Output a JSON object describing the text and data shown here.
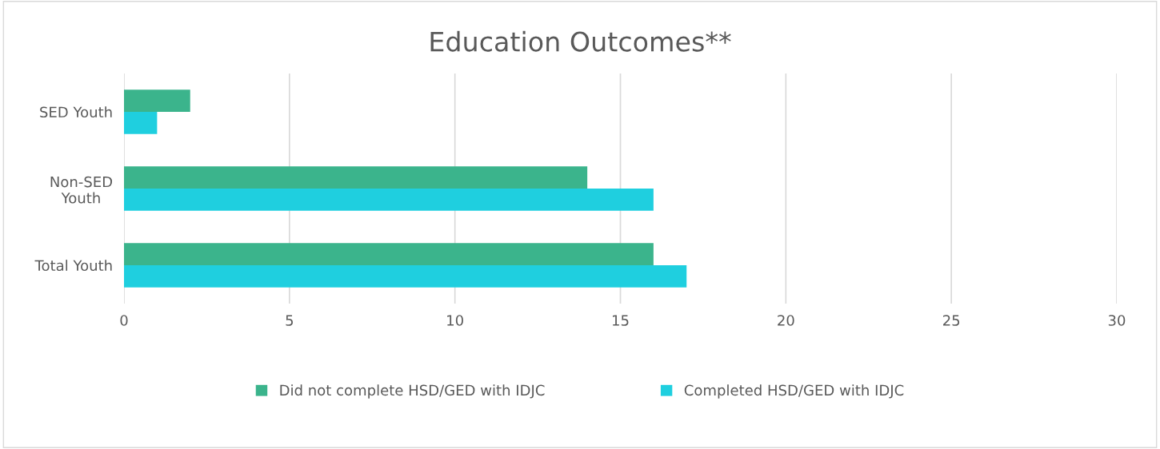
{
  "chart_data": {
    "type": "bar",
    "orientation": "horizontal",
    "title": "Education Outcomes**",
    "categories": [
      "SED Youth",
      "Non-SED\nYouth",
      "Total Youth"
    ],
    "series": [
      {
        "name": "Did not complete HSD/GED with IDJC",
        "color": "#3bb48c",
        "values": [
          2,
          14,
          16
        ]
      },
      {
        "name": "Completed HSD/GED with IDJC",
        "color": "#1fcfdf",
        "values": [
          1,
          16,
          17
        ]
      }
    ],
    "xlim": [
      0,
      30
    ],
    "xticks": [
      0,
      5,
      10,
      15,
      20,
      25,
      30
    ],
    "grid": "x",
    "legend": "bottom"
  }
}
